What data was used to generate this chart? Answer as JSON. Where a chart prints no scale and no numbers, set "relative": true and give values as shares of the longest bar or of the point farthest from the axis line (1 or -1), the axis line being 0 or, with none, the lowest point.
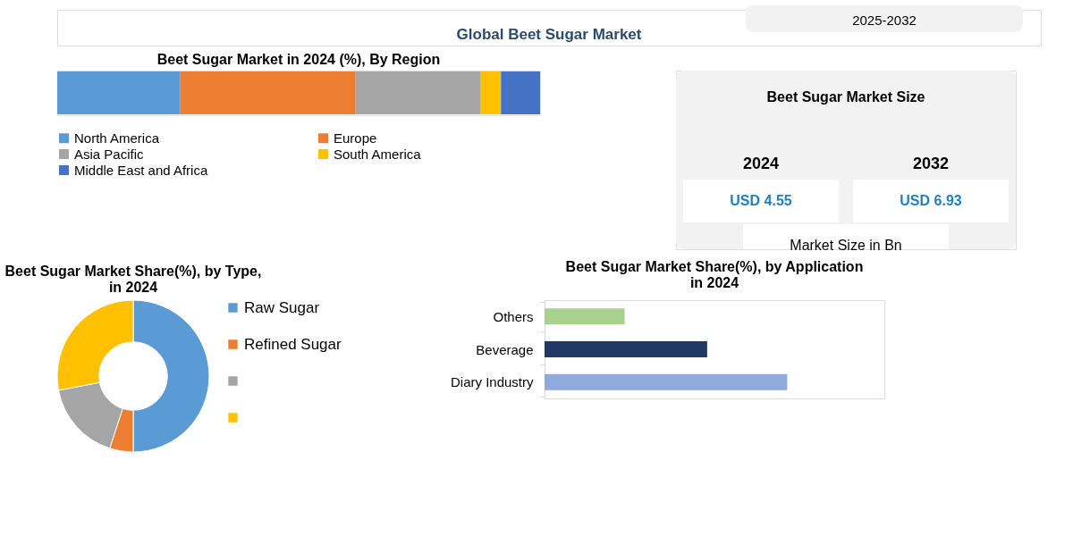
{
  "chart_data": [
    {
      "type": "other",
      "title": "Global Beet Sugar Market",
      "annotations": [
        "2025-2032"
      ]
    },
    {
      "type": "bar",
      "orientation": "horizontal",
      "stacked": true,
      "relative": true,
      "title": "Beet Sugar Market in 2024 (%), By Region",
      "categories": [
        null
      ],
      "legend": "bottom",
      "series": [
        {
          "name": "North America",
          "color": "#5b9bd5",
          "values": [
            0.255
          ]
        },
        {
          "name": "Europe",
          "color": "#ed7d31",
          "values": [
            0.362
          ]
        },
        {
          "name": "Asia Pacific",
          "color": "#a5a5a5",
          "values": [
            0.259
          ]
        },
        {
          "name": "South America",
          "color": "#ffc000",
          "values": [
            0.043
          ]
        },
        {
          "name": "Middle East and Africa",
          "color": "#4472c4",
          "values": [
            0.081
          ]
        }
      ]
    },
    {
      "type": "other",
      "title": "Beet Sugar Market Size",
      "categories": [
        "2024",
        "2032"
      ],
      "values": [
        4.55,
        6.93
      ],
      "value_labels": [
        "USD 4.55",
        "USD 6.93"
      ],
      "annotations": [
        "Market Size in Bn"
      ]
    },
    {
      "type": "donut",
      "title": "Beet Sugar Market Share(%), by Type, in 2024",
      "legend": "right",
      "categories": [
        "Raw Sugar",
        "Refined Sugar",
        null,
        null
      ],
      "values": [
        50,
        5,
        17,
        28
      ],
      "colors": [
        "#5b9bd5",
        "#ed7d31",
        "#a5a5a5",
        "#ffc000"
      ]
    },
    {
      "type": "bar",
      "orientation": "horizontal",
      "relative": true,
      "title": "Beet Sugar Market Share(%), by Application in 2024",
      "categories": [
        "Others",
        "Beverage",
        "Diary Industry"
      ],
      "values": [
        0.33,
        0.67,
        1.0
      ],
      "colors": [
        "#a9d18e",
        "#203864",
        "#8faadc"
      ]
    }
  ]
}
